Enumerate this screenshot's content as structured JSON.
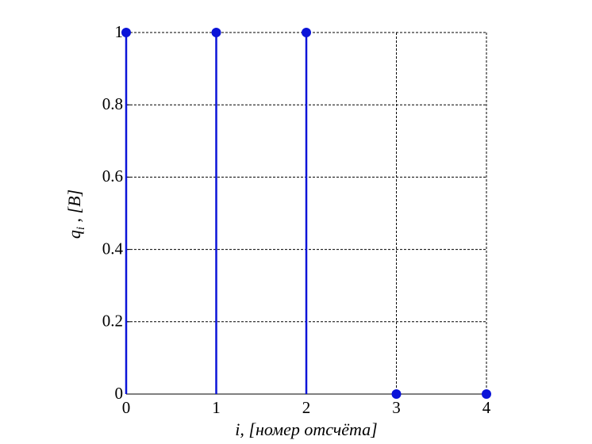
{
  "chart_data": {
    "type": "stem",
    "x": [
      0,
      1,
      2,
      3,
      4
    ],
    "values": [
      1,
      1,
      1,
      0,
      0
    ],
    "color": "#0b14d8",
    "xlim": [
      0,
      4
    ],
    "xticks": [
      0,
      1,
      2,
      3,
      4
    ],
    "ylim": [
      0,
      1
    ],
    "yticks": [
      0,
      0.2,
      0.4,
      0.6,
      0.8,
      1
    ],
    "grid": true,
    "xlabel": "i, [номер отсчёта]",
    "ylabel": [
      "q",
      "i",
      " , [B]"
    ]
  }
}
